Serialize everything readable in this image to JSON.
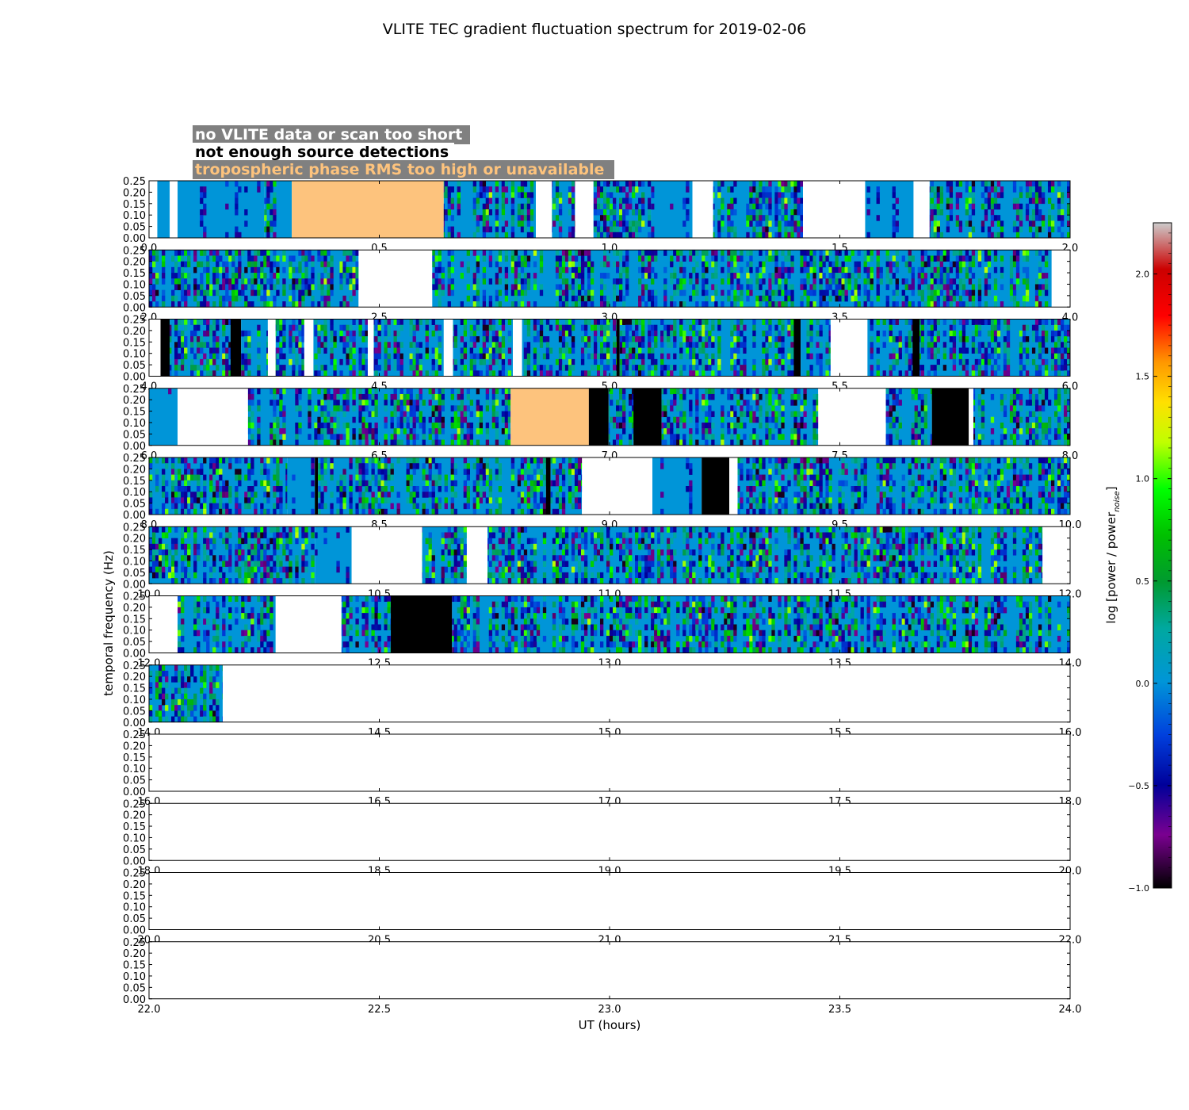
{
  "chart_data": {
    "type": "heatmap",
    "title": "VLITE TEC gradient fluctuation spectrum for 2019-02-06",
    "xlabel": "UT (hours)",
    "ylabel": "temporal frequency (Hz)",
    "colorbar_label": "log [power / power",
    "colorbar_label_sub": "noise",
    "colorbar_label_end": "]",
    "colorbar_range": [
      -1.0,
      2.25
    ],
    "colorbar_ticks": [
      "−1.0",
      "−0.5",
      "0.0",
      "0.5",
      "1.0",
      "1.5",
      "2.0"
    ],
    "colorbar_tick_values": [
      -1.0,
      -0.5,
      0.0,
      0.5,
      1.0,
      1.5,
      2.0
    ],
    "colormap": "nipy_spectral",
    "ylim": [
      0.0,
      0.25
    ],
    "y_ticks": [
      "0.00",
      "0.05",
      "0.10",
      "0.15",
      "0.20",
      "0.25"
    ],
    "y_tick_values": [
      0.0,
      0.05,
      0.1,
      0.15,
      0.2,
      0.25
    ],
    "legend": [
      {
        "label": "no VLITE data or scan too short",
        "text_color": "#ffffff",
        "box_color": "#808080"
      },
      {
        "label": "not enough source detections",
        "text_color": "#000000",
        "box_color": "#ffffff"
      },
      {
        "label": "tropospheric phase RMS too high or unavailable",
        "text_color": "#fdc37d",
        "box_color": "#808080"
      }
    ],
    "flag_colors": {
      "no_data": "#ffffff",
      "few_detections": "#000000",
      "tropo_rms": "#fdc37d"
    },
    "panels": [
      {
        "xlim": [
          0,
          2
        ],
        "x_ticks": [
          "0.0",
          "0.5",
          "1.0",
          "1.5",
          "2.0"
        ],
        "x_tick_values": [
          0,
          0.5,
          1.0,
          1.5,
          2.0
        ],
        "segments": [
          {
            "start": 0.0,
            "end": 0.018,
            "state": "no_data"
          },
          {
            "start": 0.018,
            "end": 0.045,
            "state": "quiet"
          },
          {
            "start": 0.045,
            "end": 0.062,
            "state": "no_data"
          },
          {
            "start": 0.062,
            "end": 0.25,
            "state": "quiet"
          },
          {
            "start": 0.25,
            "end": 0.31,
            "state": "active"
          },
          {
            "start": 0.31,
            "end": 0.64,
            "state": "tropo_rms"
          },
          {
            "start": 0.64,
            "end": 0.84,
            "state": "active"
          },
          {
            "start": 0.84,
            "end": 0.875,
            "state": "no_data"
          },
          {
            "start": 0.875,
            "end": 0.925,
            "state": "active"
          },
          {
            "start": 0.925,
            "end": 0.965,
            "state": "no_data"
          },
          {
            "start": 0.965,
            "end": 1.09,
            "state": "active"
          },
          {
            "start": 1.09,
            "end": 1.18,
            "state": "quiet"
          },
          {
            "start": 1.18,
            "end": 1.225,
            "state": "no_data"
          },
          {
            "start": 1.225,
            "end": 1.42,
            "state": "active"
          },
          {
            "start": 1.42,
            "end": 1.555,
            "state": "no_data"
          },
          {
            "start": 1.555,
            "end": 1.66,
            "state": "quiet"
          },
          {
            "start": 1.66,
            "end": 1.695,
            "state": "no_data"
          },
          {
            "start": 1.695,
            "end": 2.0,
            "state": "active"
          }
        ]
      },
      {
        "xlim": [
          2,
          4
        ],
        "x_ticks": [
          "2.0",
          "2.5",
          "3.0",
          "3.5",
          "4.0"
        ],
        "x_tick_values": [
          2,
          2.5,
          3.0,
          3.5,
          4.0
        ],
        "segments": [
          {
            "start": 2.0,
            "end": 2.455,
            "state": "active"
          },
          {
            "start": 2.455,
            "end": 2.615,
            "state": "no_data"
          },
          {
            "start": 2.615,
            "end": 3.96,
            "state": "active"
          },
          {
            "start": 3.96,
            "end": 4.0,
            "state": "no_data"
          }
        ]
      },
      {
        "xlim": [
          4,
          6
        ],
        "x_ticks": [
          "4.0",
          "4.5",
          "5.0",
          "5.5",
          "6.0"
        ],
        "x_tick_values": [
          4,
          4.5,
          5.0,
          5.5,
          6.0
        ],
        "segments": [
          {
            "start": 4.0,
            "end": 4.025,
            "state": "no_data"
          },
          {
            "start": 4.025,
            "end": 4.045,
            "state": "few_detections"
          },
          {
            "start": 4.045,
            "end": 4.177,
            "state": "active"
          },
          {
            "start": 4.177,
            "end": 4.2,
            "state": "few_detections"
          },
          {
            "start": 4.2,
            "end": 4.258,
            "state": "active"
          },
          {
            "start": 4.258,
            "end": 4.275,
            "state": "no_data"
          },
          {
            "start": 4.275,
            "end": 4.337,
            "state": "active"
          },
          {
            "start": 4.337,
            "end": 4.357,
            "state": "no_data"
          },
          {
            "start": 4.357,
            "end": 4.475,
            "state": "active"
          },
          {
            "start": 4.475,
            "end": 4.488,
            "state": "no_data"
          },
          {
            "start": 4.488,
            "end": 4.64,
            "state": "active"
          },
          {
            "start": 4.64,
            "end": 4.66,
            "state": "no_data"
          },
          {
            "start": 4.66,
            "end": 4.79,
            "state": "active"
          },
          {
            "start": 4.79,
            "end": 4.81,
            "state": "no_data"
          },
          {
            "start": 4.81,
            "end": 5.015,
            "state": "active"
          },
          {
            "start": 5.015,
            "end": 5.022,
            "state": "few_detections"
          },
          {
            "start": 5.022,
            "end": 5.4,
            "state": "active"
          },
          {
            "start": 5.4,
            "end": 5.415,
            "state": "few_detections"
          },
          {
            "start": 5.415,
            "end": 5.48,
            "state": "active"
          },
          {
            "start": 5.48,
            "end": 5.56,
            "state": "no_data"
          },
          {
            "start": 5.56,
            "end": 5.658,
            "state": "active"
          },
          {
            "start": 5.658,
            "end": 5.673,
            "state": "few_detections"
          },
          {
            "start": 5.673,
            "end": 6.0,
            "state": "active"
          }
        ]
      },
      {
        "xlim": [
          6,
          8
        ],
        "x_ticks": [
          "6.0",
          "6.5",
          "7.0",
          "7.5",
          "8.0"
        ],
        "x_tick_values": [
          6,
          6.5,
          7.0,
          7.5,
          8.0
        ],
        "segments": [
          {
            "start": 6.0,
            "end": 6.062,
            "state": "quiet"
          },
          {
            "start": 6.062,
            "end": 6.215,
            "state": "no_data"
          },
          {
            "start": 6.215,
            "end": 6.785,
            "state": "active"
          },
          {
            "start": 6.785,
            "end": 6.955,
            "state": "tropo_rms"
          },
          {
            "start": 6.955,
            "end": 6.998,
            "state": "few_detections"
          },
          {
            "start": 6.998,
            "end": 7.052,
            "state": "active"
          },
          {
            "start": 7.052,
            "end": 7.113,
            "state": "few_detections"
          },
          {
            "start": 7.113,
            "end": 7.453,
            "state": "active"
          },
          {
            "start": 7.453,
            "end": 7.6,
            "state": "no_data"
          },
          {
            "start": 7.6,
            "end": 7.7,
            "state": "active"
          },
          {
            "start": 7.7,
            "end": 7.78,
            "state": "few_detections"
          },
          {
            "start": 7.78,
            "end": 7.79,
            "state": "no_data"
          },
          {
            "start": 7.79,
            "end": 8.0,
            "state": "active"
          }
        ]
      },
      {
        "xlim": [
          8,
          10
        ],
        "x_ticks": [
          "8.0",
          "8.5",
          "9.0",
          "9.5",
          "10.0"
        ],
        "x_tick_values": [
          8,
          8.5,
          9.0,
          9.5,
          10.0
        ],
        "segments": [
          {
            "start": 8.0,
            "end": 8.3,
            "state": "active"
          },
          {
            "start": 8.3,
            "end": 8.36,
            "state": "quiet"
          },
          {
            "start": 8.36,
            "end": 8.367,
            "state": "few_detections"
          },
          {
            "start": 8.367,
            "end": 8.862,
            "state": "active"
          },
          {
            "start": 8.862,
            "end": 8.872,
            "state": "few_detections"
          },
          {
            "start": 8.872,
            "end": 8.94,
            "state": "active"
          },
          {
            "start": 8.94,
            "end": 9.093,
            "state": "no_data"
          },
          {
            "start": 9.093,
            "end": 9.2,
            "state": "quiet"
          },
          {
            "start": 9.2,
            "end": 9.26,
            "state": "few_detections"
          },
          {
            "start": 9.26,
            "end": 9.278,
            "state": "no_data"
          },
          {
            "start": 9.278,
            "end": 10.0,
            "state": "active"
          }
        ]
      },
      {
        "xlim": [
          10,
          12
        ],
        "x_ticks": [
          "10.0",
          "10.5",
          "11.0",
          "11.5",
          "12.0"
        ],
        "x_tick_values": [
          10,
          10.5,
          11.0,
          11.5,
          12.0
        ],
        "segments": [
          {
            "start": 10.0,
            "end": 10.36,
            "state": "active"
          },
          {
            "start": 10.36,
            "end": 10.44,
            "state": "quiet"
          },
          {
            "start": 10.44,
            "end": 10.593,
            "state": "no_data"
          },
          {
            "start": 10.593,
            "end": 10.69,
            "state": "active"
          },
          {
            "start": 10.69,
            "end": 10.735,
            "state": "no_data"
          },
          {
            "start": 10.735,
            "end": 11.94,
            "state": "active"
          },
          {
            "start": 11.94,
            "end": 12.0,
            "state": "no_data"
          }
        ]
      },
      {
        "xlim": [
          12,
          14
        ],
        "x_ticks": [
          "12.0",
          "12.5",
          "13.0",
          "13.5",
          "14.0"
        ],
        "x_tick_values": [
          12,
          12.5,
          13.0,
          13.5,
          14.0
        ],
        "segments": [
          {
            "start": 12.0,
            "end": 12.062,
            "state": "no_data"
          },
          {
            "start": 12.062,
            "end": 12.275,
            "state": "active"
          },
          {
            "start": 12.275,
            "end": 12.418,
            "state": "no_data"
          },
          {
            "start": 12.418,
            "end": 12.525,
            "state": "active"
          },
          {
            "start": 12.525,
            "end": 12.658,
            "state": "few_detections"
          },
          {
            "start": 12.658,
            "end": 14.0,
            "state": "active"
          }
        ]
      },
      {
        "xlim": [
          14,
          16
        ],
        "x_ticks": [
          "14.0",
          "14.5",
          "15.0",
          "15.5",
          "16.0"
        ],
        "x_tick_values": [
          14,
          14.5,
          15.0,
          15.5,
          16.0
        ],
        "segments": [
          {
            "start": 14.0,
            "end": 14.16,
            "state": "active"
          },
          {
            "start": 14.16,
            "end": 16.0,
            "state": "no_data"
          }
        ]
      },
      {
        "xlim": [
          16,
          18
        ],
        "x_ticks": [
          "16.0",
          "16.5",
          "17.0",
          "17.5",
          "18.0"
        ],
        "x_tick_values": [
          16,
          16.5,
          17.0,
          17.5,
          18.0
        ],
        "segments": [
          {
            "start": 16.0,
            "end": 18.0,
            "state": "no_data"
          }
        ]
      },
      {
        "xlim": [
          18,
          20
        ],
        "x_ticks": [
          "18.0",
          "18.5",
          "19.0",
          "19.5",
          "20.0"
        ],
        "x_tick_values": [
          18,
          18.5,
          19.0,
          19.5,
          20.0
        ],
        "segments": [
          {
            "start": 18.0,
            "end": 20.0,
            "state": "no_data"
          }
        ]
      },
      {
        "xlim": [
          20,
          22
        ],
        "x_ticks": [
          "20.0",
          "20.5",
          "21.0",
          "21.5",
          "22.0"
        ],
        "x_tick_values": [
          20,
          20.5,
          21.0,
          21.5,
          22.0
        ],
        "segments": [
          {
            "start": 20.0,
            "end": 22.0,
            "state": "no_data"
          }
        ]
      },
      {
        "xlim": [
          22,
          24
        ],
        "x_ticks": [
          "22.0",
          "22.5",
          "23.0",
          "23.5",
          "24.0"
        ],
        "x_tick_values": [
          22,
          22.5,
          23.0,
          23.5,
          24.0
        ],
        "segments": [
          {
            "start": 22.0,
            "end": 24.0,
            "state": "no_data"
          }
        ]
      }
    ]
  }
}
